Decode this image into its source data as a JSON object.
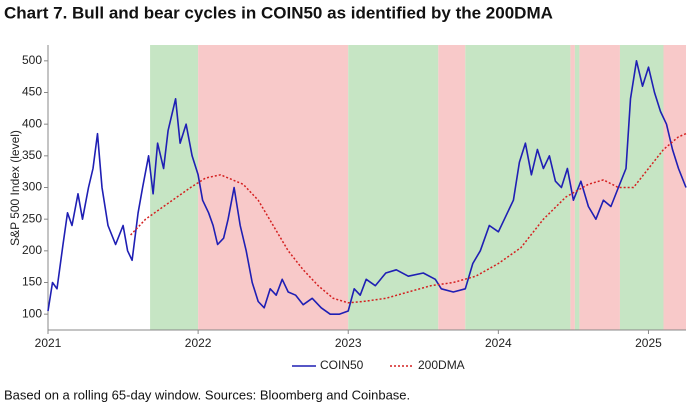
{
  "chart_data": {
    "type": "line",
    "title": "Chart 7. Bull and bear cycles in COIN50 as identified by the 200DMA",
    "ylabel": "S&P 500 Index (level)",
    "footnote": "Based on a rolling 65-day window. Sources: Bloomberg and Coinbase.",
    "xlim": [
      2021,
      2025.25
    ],
    "xticks": [
      2021,
      2022,
      2023,
      2024,
      2025
    ],
    "ylim": [
      75,
      525
    ],
    "yticks": [
      100,
      150,
      200,
      250,
      300,
      350,
      400,
      450,
      500
    ],
    "regions": [
      {
        "start": 2021.68,
        "end": 2022.0,
        "color": "#c6e5c4"
      },
      {
        "start": 2022.0,
        "end": 2023.0,
        "color": "#f8c9c9"
      },
      {
        "start": 2023.0,
        "end": 2023.6,
        "color": "#c6e5c4"
      },
      {
        "start": 2023.6,
        "end": 2023.78,
        "color": "#f8c9c9"
      },
      {
        "start": 2023.78,
        "end": 2024.48,
        "color": "#c6e5c4"
      },
      {
        "start": 2024.48,
        "end": 2024.51,
        "color": "#f8c9c9"
      },
      {
        "start": 2024.51,
        "end": 2024.54,
        "color": "#c6e5c4"
      },
      {
        "start": 2024.54,
        "end": 2024.81,
        "color": "#f8c9c9"
      },
      {
        "start": 2024.81,
        "end": 2025.1,
        "color": "#c6e5c4"
      },
      {
        "start": 2025.1,
        "end": 2025.25,
        "color": "#f8c9c9"
      }
    ],
    "series": [
      {
        "name": "COIN50",
        "color": "#1f1fb4",
        "dash": false,
        "x": [
          2021.0,
          2021.03,
          2021.06,
          2021.1,
          2021.13,
          2021.16,
          2021.2,
          2021.23,
          2021.27,
          2021.3,
          2021.33,
          2021.36,
          2021.4,
          2021.45,
          2021.5,
          2021.53,
          2021.56,
          2021.6,
          2021.63,
          2021.67,
          2021.7,
          2021.73,
          2021.77,
          2021.8,
          2021.85,
          2021.88,
          2021.92,
          2021.96,
          2022.0,
          2022.03,
          2022.07,
          2022.1,
          2022.13,
          2022.17,
          2022.2,
          2022.24,
          2022.28,
          2022.32,
          2022.36,
          2022.4,
          2022.44,
          2022.48,
          2022.52,
          2022.56,
          2022.6,
          2022.65,
          2022.7,
          2022.76,
          2022.82,
          2022.88,
          2022.94,
          2023.0,
          2023.04,
          2023.08,
          2023.12,
          2023.18,
          2023.25,
          2023.32,
          2023.4,
          2023.5,
          2023.58,
          2023.62,
          2023.7,
          2023.78,
          2023.83,
          2023.88,
          2023.94,
          2024.0,
          2024.06,
          2024.1,
          2024.14,
          2024.18,
          2024.22,
          2024.26,
          2024.3,
          2024.34,
          2024.38,
          2024.42,
          2024.46,
          2024.5,
          2024.55,
          2024.6,
          2024.65,
          2024.7,
          2024.75,
          2024.8,
          2024.85,
          2024.88,
          2024.92,
          2024.96,
          2025.0,
          2025.04,
          2025.08,
          2025.12,
          2025.16,
          2025.2,
          2025.25
        ],
        "values": [
          105,
          150,
          140,
          210,
          260,
          240,
          290,
          250,
          300,
          330,
          385,
          300,
          240,
          210,
          240,
          200,
          185,
          260,
          300,
          350,
          290,
          370,
          330,
          390,
          440,
          370,
          400,
          350,
          320,
          280,
          260,
          240,
          210,
          220,
          250,
          300,
          240,
          200,
          150,
          120,
          110,
          140,
          130,
          155,
          135,
          130,
          115,
          125,
          110,
          100,
          100,
          105,
          140,
          130,
          155,
          145,
          165,
          170,
          160,
          165,
          155,
          140,
          135,
          140,
          180,
          200,
          240,
          230,
          260,
          280,
          340,
          370,
          320,
          360,
          330,
          350,
          310,
          300,
          330,
          280,
          310,
          270,
          250,
          280,
          270,
          300,
          330,
          440,
          500,
          460,
          490,
          450,
          420,
          400,
          360,
          330,
          300
        ]
      },
      {
        "name": "200DMA",
        "color": "#d42020",
        "dash": true,
        "x": [
          2021.55,
          2021.65,
          2021.8,
          2021.95,
          2022.05,
          2022.15,
          2022.3,
          2022.4,
          2022.5,
          2022.6,
          2022.7,
          2022.8,
          2022.9,
          2023.0,
          2023.1,
          2023.25,
          2023.4,
          2023.55,
          2023.7,
          2023.85,
          2024.0,
          2024.15,
          2024.3,
          2024.45,
          2024.6,
          2024.7,
          2024.8,
          2024.9,
          2025.0,
          2025.1,
          2025.2,
          2025.25
        ],
        "values": [
          225,
          250,
          275,
          300,
          315,
          320,
          305,
          280,
          240,
          200,
          170,
          145,
          125,
          118,
          120,
          125,
          135,
          145,
          150,
          160,
          180,
          205,
          250,
          285,
          305,
          312,
          300,
          300,
          330,
          360,
          380,
          385
        ]
      }
    ]
  }
}
